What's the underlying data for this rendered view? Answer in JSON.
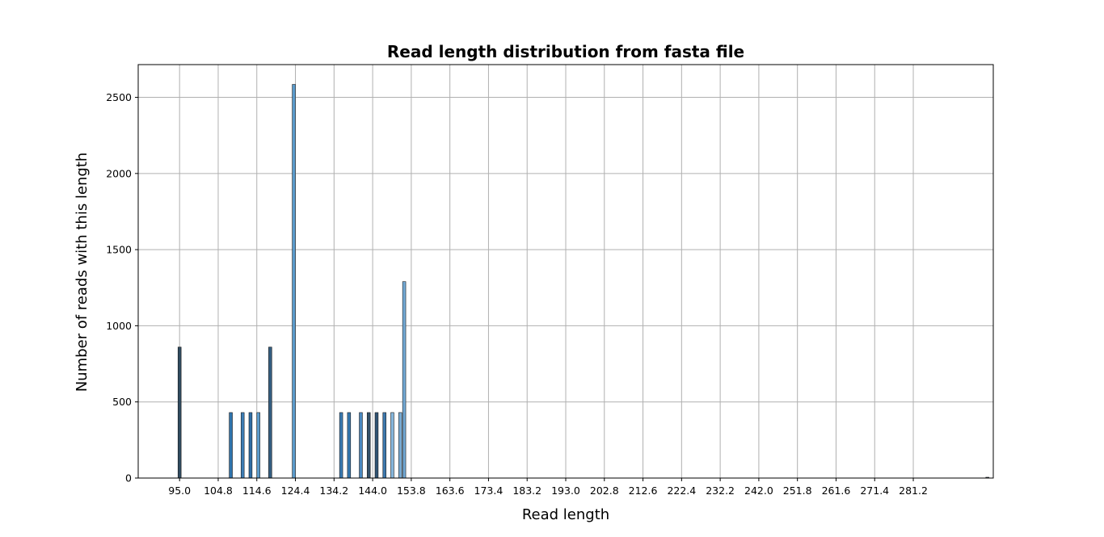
{
  "chart_data": {
    "type": "bar",
    "title": "Read length distribution from fasta file",
    "xlabel": "Read length",
    "ylabel": "Number of reads with this length",
    "x_ticks": [
      "95.0",
      "104.8",
      "114.6",
      "124.4",
      "134.2",
      "144.0",
      "153.8",
      "163.6",
      "173.4",
      "183.2",
      "193.0",
      "202.8",
      "212.6",
      "222.4",
      "232.2",
      "242.0",
      "251.8",
      "261.6",
      "271.4",
      "281.2"
    ],
    "y_ticks": [
      "0",
      "500",
      "1000",
      "1500",
      "2000",
      "2500"
    ],
    "xlim": [
      84.5,
      301.5
    ],
    "ylim": [
      0,
      2715
    ],
    "grid": true,
    "bars": [
      {
        "x": 95,
        "value": 860,
        "color": "#2f4b60"
      },
      {
        "x": 108,
        "value": 430,
        "color": "#3074ad"
      },
      {
        "x": 111,
        "value": 430,
        "color": "#3d7db5"
      },
      {
        "x": 113,
        "value": 430,
        "color": "#2f6ea6"
      },
      {
        "x": 115,
        "value": 430,
        "color": "#5d9ccd"
      },
      {
        "x": 118,
        "value": 860,
        "color": "#345e80"
      },
      {
        "x": 124,
        "value": 2585,
        "color": "#5b9bcc"
      },
      {
        "x": 136,
        "value": 430,
        "color": "#3a7bb3"
      },
      {
        "x": 138,
        "value": 430,
        "color": "#3579b1"
      },
      {
        "x": 141,
        "value": 430,
        "color": "#4a88bf"
      },
      {
        "x": 143,
        "value": 430,
        "color": "#34516a"
      },
      {
        "x": 145,
        "value": 430,
        "color": "#2f5373"
      },
      {
        "x": 147,
        "value": 430,
        "color": "#3d78ad"
      },
      {
        "x": 149,
        "value": 430,
        "color": "#85b6dc"
      },
      {
        "x": 151,
        "value": 430,
        "color": "#7aaed7"
      },
      {
        "x": 152,
        "value": 1290,
        "color": "#72a9d5"
      },
      {
        "x": 300,
        "value": 3,
        "color": "#2f4b60"
      }
    ]
  }
}
